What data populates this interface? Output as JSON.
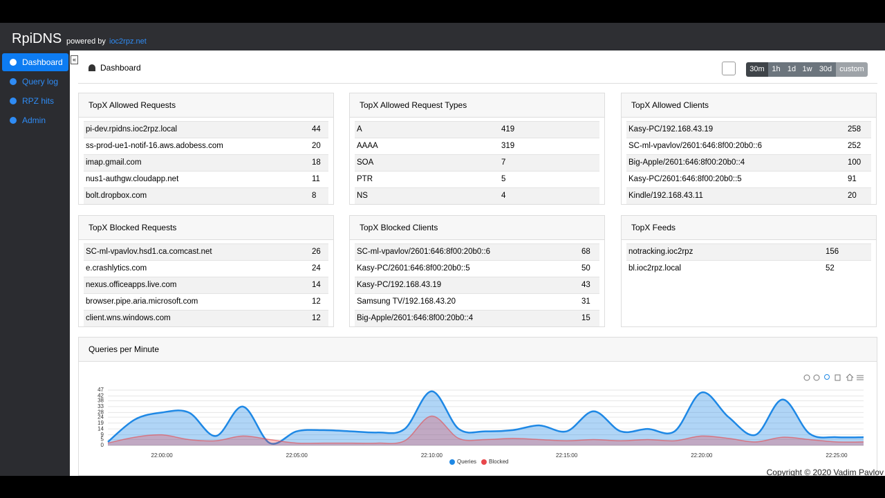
{
  "navbar": {
    "brand": "RpiDNS",
    "powered_by": "powered by",
    "link": "ioc2rpz.net"
  },
  "sidebar": [
    "Dashboard",
    "Query log",
    "RPZ hits",
    "Admin"
  ],
  "header": {
    "title": "Dashboard",
    "periods": [
      "30m",
      "1h",
      "1d",
      "1w",
      "30d",
      "custom"
    ]
  },
  "panels": [
    {
      "title": "TopX Allowed Requests",
      "rows": [
        [
          "pi-dev.rpidns.ioc2rpz.local",
          44
        ],
        [
          "ss-prod-ue1-notif-16.aws.adobess.com",
          20
        ],
        [
          "imap.gmail.com",
          18
        ],
        [
          "nus1-authgw.cloudapp.net",
          11
        ],
        [
          "bolt.dropbox.com",
          8
        ]
      ]
    },
    {
      "title": "TopX Allowed Request Types",
      "rows": [
        [
          "A",
          419
        ],
        [
          "AAAA",
          319
        ],
        [
          "SOA",
          7
        ],
        [
          "PTR",
          5
        ],
        [
          "NS",
          4
        ]
      ]
    },
    {
      "title": "TopX Allowed Clients",
      "rows": [
        [
          "Kasy-PC/192.168.43.19",
          258
        ],
        [
          "SC-ml-vpavlov/2601:646:8f00:20b0::6",
          252
        ],
        [
          "Big-Apple/2601:646:8f00:20b0::4",
          100
        ],
        [
          "Kasy-PC/2601:646:8f00:20b0::5",
          91
        ],
        [
          "Kindle/192.168.43.11",
          20
        ]
      ]
    },
    {
      "title": "TopX Blocked Requests",
      "rows": [
        [
          "SC-ml-vpavlov.hsd1.ca.comcast.net",
          26
        ],
        [
          "e.crashlytics.com",
          24
        ],
        [
          "nexus.officeapps.live.com",
          14
        ],
        [
          "browser.pipe.aria.microsoft.com",
          12
        ],
        [
          "client.wns.windows.com",
          12
        ]
      ]
    },
    {
      "title": "TopX Blocked Clients",
      "rows": [
        [
          "SC-ml-vpavlov/2601:646:8f00:20b0::6",
          68
        ],
        [
          "Kasy-PC/2601:646:8f00:20b0::5",
          50
        ],
        [
          "Kasy-PC/192.168.43.19",
          43
        ],
        [
          "Samsung TV/192.168.43.20",
          31
        ],
        [
          "Big-Apple/2601:646:8f00:20b0::4",
          15
        ]
      ]
    },
    {
      "title": "TopX Feeds",
      "rows": [
        [
          "notracking.ioc2rpz",
          156
        ],
        [
          "bl.ioc2rpz.local",
          52
        ]
      ]
    }
  ],
  "chart_data": {
    "type": "area",
    "title": "Queries per Minute",
    "categories": [
      null,
      null,
      "22:00:00",
      null,
      null,
      null,
      null,
      "22:05:00",
      null,
      null,
      null,
      null,
      "22:10:00",
      null,
      null,
      null,
      null,
      "22:15:00",
      null,
      null,
      null,
      null,
      "22:20:00",
      null,
      null,
      null,
      null,
      "22:25:00",
      null
    ],
    "series": [
      {
        "name": "Queries",
        "color": "#1e88e5",
        "values": [
          3,
          22,
          28,
          28,
          8,
          33,
          2,
          12,
          13,
          12,
          11,
          14,
          46,
          14,
          12,
          13,
          17,
          12,
          29,
          12,
          14,
          12,
          45,
          24,
          9,
          39,
          10,
          7,
          7
        ]
      },
      {
        "name": "Blocked",
        "color": "#e8474b",
        "values": [
          2,
          7,
          9,
          5,
          4,
          8,
          5,
          2,
          2,
          2,
          2,
          4,
          25,
          6,
          5,
          6,
          5,
          4,
          5,
          4,
          5,
          4,
          8,
          6,
          3,
          7,
          5,
          3,
          3
        ]
      }
    ],
    "ylim": [
      0,
      47
    ],
    "yticks": [
      0,
      5,
      9,
      14,
      19,
      24,
      28,
      33,
      38,
      42,
      47
    ],
    "grid": true,
    "legend": "bottom"
  },
  "footer": "Copyright © 2020 Vadim Pavlov"
}
